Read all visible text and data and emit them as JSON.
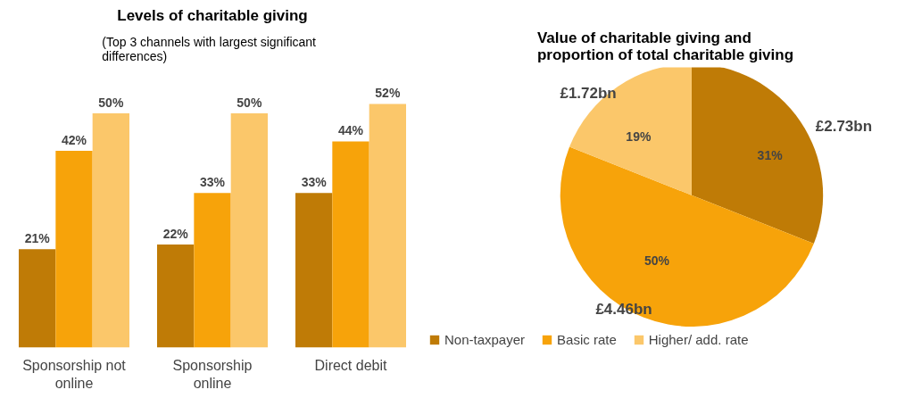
{
  "chart_data": [
    {
      "type": "bar",
      "title": "Levels of charitable giving",
      "subtitle": "(Top 3 channels with largest  significant differences)",
      "categories": [
        "Sponsorship not online",
        "Sponsorship online",
        "Direct debit"
      ],
      "series": [
        {
          "color": "#bf7b06",
          "values": [
            21,
            22,
            33
          ],
          "value_labels": [
            "21%",
            "22%",
            "33%"
          ]
        },
        {
          "color": "#f7a30a",
          "values": [
            42,
            33,
            44
          ],
          "value_labels": [
            "42%",
            "33%",
            "44%"
          ]
        },
        {
          "color": "#fbc76a",
          "values": [
            50,
            50,
            52
          ],
          "value_labels": [
            "50%",
            "50%",
            "52%"
          ]
        }
      ]
    },
    {
      "type": "pie",
      "title": "Value of charitable giving and proportion of total charitable giving",
      "categories": [
        "Non-taxpayer",
        "Basic rate",
        "Higher/ add. rate"
      ],
      "values": [
        31,
        50,
        19
      ],
      "colors": [
        "#bf7b06",
        "#f7a30a",
        "#fbc76a"
      ],
      "value_labels": [
        "31%",
        "50%",
        "19%"
      ],
      "legend": "bottom left",
      "annotations": [
        {
          "text": "£2.73bn",
          "x": "Non-taxpayer"
        },
        {
          "text": "£4.46bn",
          "x": "Basic rate"
        },
        {
          "text": "£1.72bn",
          "x": "Higher/ add. rate"
        }
      ]
    }
  ]
}
